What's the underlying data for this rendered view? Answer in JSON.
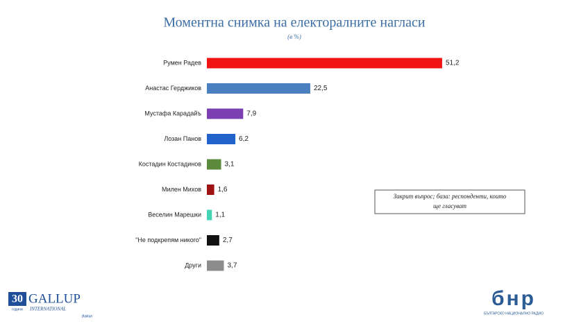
{
  "chart_data": {
    "type": "hbar",
    "title": "Моментна снимка на електоралните нагласи",
    "subtitle": "(в %)",
    "categories": [
      "Румен Радев",
      "Анастас Герджиков",
      "Мустафа Карадайъ",
      "Лозан Панов",
      "Костадин Костадинов",
      "Милен Михов",
      "Веселин Марешки",
      "\"Не подкрепям никого\"",
      "Други"
    ],
    "values": [
      51.2,
      22.5,
      7.9,
      6.2,
      3.1,
      1.6,
      1.1,
      2.7,
      3.7
    ],
    "value_labels": [
      "51,2",
      "22,5",
      "7,9",
      "6,2",
      "3,1",
      "1,6",
      "1,1",
      "2,7",
      "3,7"
    ],
    "colors": [
      "#f01414",
      "#4a7fc0",
      "#7b3fb2",
      "#2262cc",
      "#5c8a3c",
      "#9e1212",
      "#44d4b4",
      "#111111",
      "#8c8c8c"
    ],
    "annotation": [
      "Закрит въпрос; база: респонденти, които",
      "ще гласуват"
    ]
  },
  "logos": {
    "gallup": {
      "years": "30",
      "years_word": "години",
      "name": "GALLUP",
      "sub": "INTERNATIONAL",
      "region": "Balkan"
    },
    "bnr": {
      "name": "бнр",
      "sub": "БЪЛГАРСКО НАЦИОНАЛНО РАДИО"
    }
  }
}
